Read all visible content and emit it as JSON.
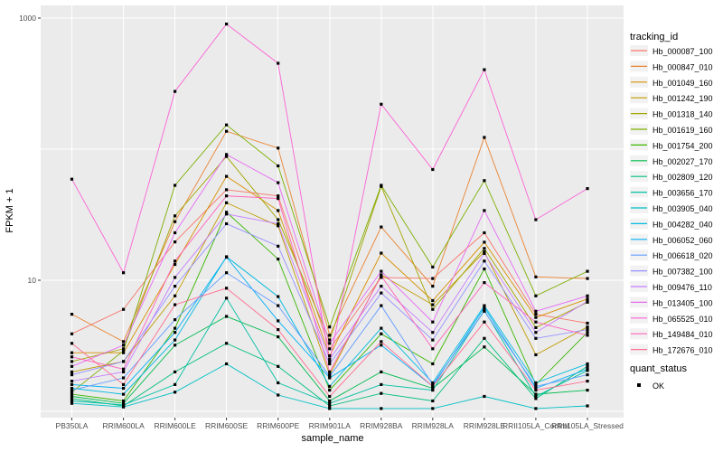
{
  "figure": {
    "background": "#FFFFFF",
    "panel_background": "#EBEBEB",
    "gridline_color": "#FFFFFF",
    "axis_text_color": "#4D4D4D",
    "point_color": "#000000",
    "legend_key_background": "#F2F2F2"
  },
  "chart_data": {
    "type": "line",
    "title": "",
    "xlabel": "sample_name",
    "ylabel": "FPKM + 1",
    "y_scale": "log10",
    "ylim": [
      1,
      1100
    ],
    "grid": "on",
    "legend_position": "right",
    "legend_title": "tracking_id",
    "legend2_title": "quant_status",
    "legend2_items": [
      {
        "label": "OK"
      }
    ],
    "y_ticks": [
      {
        "label": "1000",
        "value": 1000
      },
      {
        "label": "10",
        "value": 10
      }
    ],
    "y_gridlines": [
      1000,
      100,
      10,
      1
    ],
    "categories": [
      "PB350LA",
      "RRIM600LA",
      "RRIM600LE",
      "RRIM600SE",
      "RRIM600PE",
      "RRIM901LA",
      "RRIM928BA",
      "RRIM928LA",
      "RRIM928LE",
      "RRII105LA_Control",
      "RRII105LA_Stressed"
    ],
    "series": [
      {
        "name": "Hb_000087_100",
        "color": "#F8766D",
        "values": [
          3.9,
          6.0,
          19.6,
          49,
          44,
          3.0,
          10.5,
          10.3,
          23,
          5.5,
          4.7
        ]
      },
      {
        "name": "Hb_000847_010",
        "color": "#EA8331",
        "values": [
          5.5,
          3.4,
          28,
          137,
          102,
          3.8,
          25.5,
          9.0,
          123,
          10.6,
          10.3
        ]
      },
      {
        "name": "Hb_001049_160",
        "color": "#D89000",
        "values": [
          2.8,
          2.8,
          13.2,
          62,
          34,
          2.65,
          16.1,
          7.0,
          19.5,
          5.2,
          7.2
        ]
      },
      {
        "name": "Hb_001242_190",
        "color": "#C09B00",
        "values": [
          2.0,
          2.4,
          7.6,
          39,
          26,
          1.9,
          11.0,
          6.5,
          16.5,
          2.7,
          4.4
        ]
      },
      {
        "name": "Hb_001318_140",
        "color": "#A3A500",
        "values": [
          2.4,
          3.0,
          31,
          88,
          29,
          3.5,
          52,
          6.0,
          17.5,
          4.35,
          6.8
        ]
      },
      {
        "name": "Hb_001619_160",
        "color": "#7CAE00",
        "values": [
          1.4,
          2.9,
          53,
          153,
          74.5,
          4.4,
          53,
          12.6,
          57.5,
          7.6,
          11.7
        ]
      },
      {
        "name": "Hb_001754_200",
        "color": "#39B600",
        "values": [
          1.35,
          1.2,
          4.3,
          33,
          14.5,
          1.45,
          3.9,
          2.3,
          12.2,
          1.6,
          4.0
        ]
      },
      {
        "name": "Hb_002027_170",
        "color": "#00BB4E",
        "values": [
          1.3,
          1.15,
          3.2,
          5.3,
          3.7,
          1.2,
          2.0,
          1.5,
          3.1,
          1.35,
          1.45
        ]
      },
      {
        "name": "Hb_002809_120",
        "color": "#00BF7D",
        "values": [
          1.25,
          1.1,
          2.0,
          3.3,
          2.2,
          1.1,
          1.37,
          1.2,
          3.6,
          1.25,
          2.2
        ]
      },
      {
        "name": "Hb_003656_170",
        "color": "#00C1A3",
        "values": [
          1.2,
          1.12,
          1.6,
          7.3,
          1.65,
          1.15,
          1.6,
          1.45,
          5.9,
          1.3,
          2.05
        ]
      },
      {
        "name": "Hb_003905_040",
        "color": "#00BFC4",
        "values": [
          1.15,
          1.08,
          1.4,
          2.3,
          1.33,
          1.05,
          1.05,
          1.05,
          1.3,
          1.05,
          1.1
        ]
      },
      {
        "name": "Hb_004282_040",
        "color": "#00BAE0",
        "values": [
          1.5,
          1.35,
          3.5,
          15.1,
          7.5,
          1.55,
          4.3,
          1.65,
          6.4,
          1.65,
          2.3
        ]
      },
      {
        "name": "Hb_006052_060",
        "color": "#00B0F6",
        "values": [
          1.6,
          1.5,
          4.0,
          15.0,
          4.9,
          1.8,
          3.2,
          1.55,
          6.2,
          1.5,
          2.1
        ]
      },
      {
        "name": "Hb_006618_020",
        "color": "#619CFF",
        "values": [
          1.45,
          1.8,
          5.0,
          11.4,
          6.4,
          1.85,
          6.4,
          1.6,
          5.8,
          1.55,
          1.9
        ]
      },
      {
        "name": "Hb_007382_100",
        "color": "#9590FF",
        "values": [
          1.9,
          2.4,
          9.0,
          27,
          18.2,
          2.3,
          8.0,
          3.5,
          14.0,
          3.6,
          4.2
        ]
      },
      {
        "name": "Hb_009476_110",
        "color": "#C77CFF",
        "values": [
          1.7,
          2.0,
          10.5,
          32,
          27,
          2.5,
          9.0,
          4.0,
          16.0,
          4.0,
          6.9
        ]
      },
      {
        "name": "Hb_013405_100",
        "color": "#E76BF3",
        "values": [
          2.2,
          3.2,
          23,
          91,
          55.5,
          3.3,
          11.7,
          4.8,
          34,
          5.8,
          7.6
        ]
      },
      {
        "name": "Hb_065525_010",
        "color": "#FC61D5",
        "values": [
          59,
          11.4,
          276,
          900,
          452,
          2.4,
          220,
          70,
          404,
          29,
          50
        ]
      },
      {
        "name": "Hb_149484_010",
        "color": "#FF62BC",
        "values": [
          2.6,
          2.1,
          14.0,
          44,
          42,
          2.0,
          10.8,
          3.0,
          9.6,
          4.8,
          3.8
        ]
      },
      {
        "name": "Hb_172676_010",
        "color": "#FF6C91",
        "values": [
          3.3,
          1.6,
          6.5,
          8.7,
          4.2,
          1.3,
          3.4,
          1.55,
          4.8,
          1.45,
          1.7
        ]
      }
    ]
  }
}
